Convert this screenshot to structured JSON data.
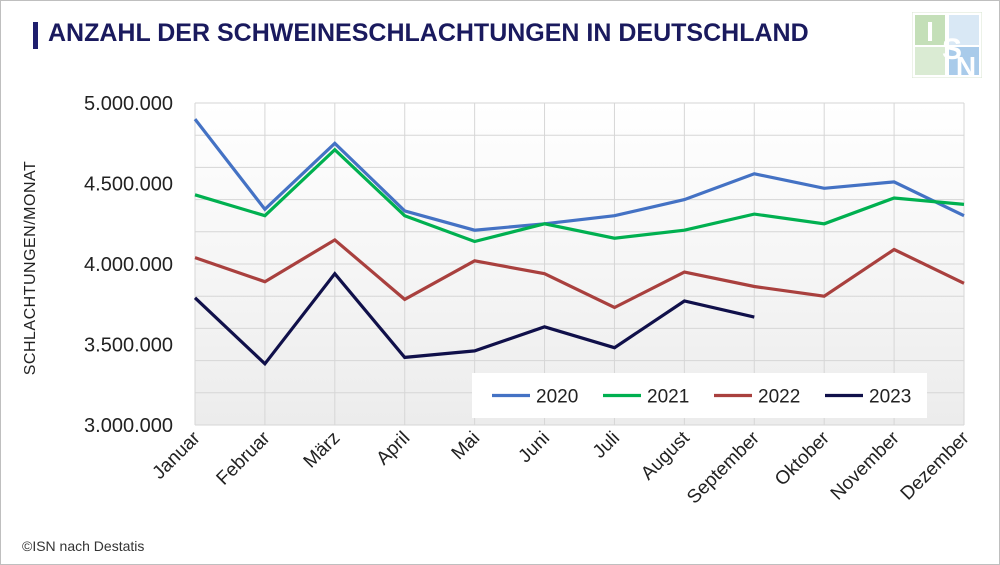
{
  "title": "ANZAHL DER SCHWEINESCHLACHTUNGEN IN DEUTSCHLAND",
  "source": "©ISN nach Destatis",
  "logo": {
    "letters": [
      "I",
      "S",
      "N"
    ],
    "colors": [
      "#6aa84f",
      "#3d85c6"
    ]
  },
  "chart_data": {
    "type": "line",
    "title": "ANZAHL DER SCHWEINESCHLACHTUNGEN IN DEUTSCHLAND",
    "xlabel": "",
    "ylabel": "SCHLACHTUNGEN/MONAT",
    "ylim": [
      3000000,
      5000000
    ],
    "yticks": [
      3000000,
      3500000,
      4000000,
      4500000,
      5000000
    ],
    "ytick_labels": [
      "3.000.000",
      "3.500.000",
      "4.000.000",
      "4.500.000",
      "5.000.000"
    ],
    "grid": true,
    "legend_position": "bottom-right",
    "categories": [
      "Januar",
      "Februar",
      "März",
      "April",
      "Mai",
      "Juni",
      "Juli",
      "August",
      "September",
      "Oktober",
      "November",
      "Dezember"
    ],
    "series": [
      {
        "name": "2020",
        "color": "#4472c4",
        "values": [
          4900000,
          4340000,
          4750000,
          4330000,
          4210000,
          4250000,
          4300000,
          4400000,
          4560000,
          4470000,
          4510000,
          4300000
        ]
      },
      {
        "name": "2021",
        "color": "#00b050",
        "values": [
          4430000,
          4300000,
          4710000,
          4300000,
          4140000,
          4250000,
          4160000,
          4210000,
          4310000,
          4250000,
          4410000,
          4370000
        ]
      },
      {
        "name": "2022",
        "color": "#a9403e",
        "values": [
          4040000,
          3890000,
          4150000,
          3780000,
          4020000,
          3940000,
          3730000,
          3950000,
          3860000,
          3800000,
          4090000,
          3880000
        ]
      },
      {
        "name": "2023",
        "color": "#10104a",
        "values": [
          3790000,
          3380000,
          3940000,
          3420000,
          3460000,
          3610000,
          3480000,
          3770000,
          3670000,
          null,
          null,
          null
        ]
      }
    ]
  }
}
